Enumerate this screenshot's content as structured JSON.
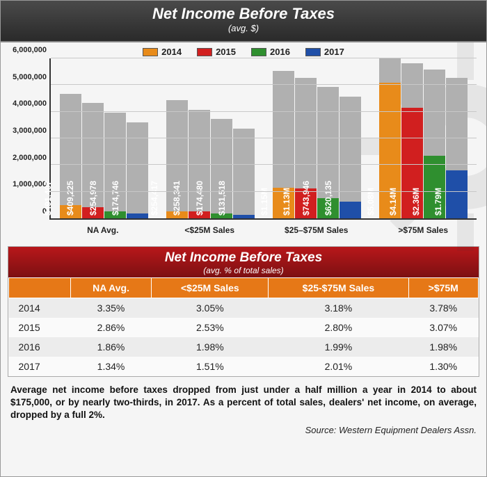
{
  "header": {
    "title": "Net Income Before Taxes",
    "subtitle": "(avg. $)"
  },
  "chart": {
    "type": "bar",
    "ylim": [
      0,
      6000000
    ],
    "ytick_step": 1000000,
    "yticks": [
      "0",
      "1,000,000",
      "2,000,000",
      "3,000,000",
      "4,000,000",
      "5,000,000",
      "6,000,000"
    ],
    "big_bar_color": "#b0b0b0",
    "grid_color": "#c8c8c8",
    "background_color": "#f5f5f5",
    "label_fontsize": 12,
    "series": [
      {
        "year": "2014",
        "color": "#e88b1a"
      },
      {
        "year": "2015",
        "color": "#d11f1f"
      },
      {
        "year": "2016",
        "color": "#2f8f2f"
      },
      {
        "year": "2017",
        "color": "#1f4fa8"
      }
    ],
    "categories": [
      {
        "label": "NA Avg.",
        "big_heights": [
          0.78,
          0.72,
          0.66,
          0.6
        ],
        "values": [
          491407,
          409225,
          254978,
          174746
        ],
        "value_labels": [
          "$491,407",
          "$409,225",
          "$254,978",
          "$174,746"
        ]
      },
      {
        "label": "<$25M Sales",
        "big_heights": [
          0.74,
          0.68,
          0.62,
          0.56
        ],
        "values": [
          254417,
          258341,
          174480,
          131518
        ],
        "value_labels": [
          "$254,417",
          "$258,341",
          "$174,480",
          "$131,518"
        ]
      },
      {
        "label": "$25–$75M Sales",
        "big_heights": [
          0.92,
          0.88,
          0.82,
          0.76
        ],
        "values": [
          1150000,
          1130000,
          743946,
          620135
        ],
        "value_labels": [
          "$1.15M",
          "$1.13M",
          "$743,946",
          "$620,135"
        ]
      },
      {
        "label": ">$75M Sales",
        "big_heights": [
          1.0,
          0.97,
          0.93,
          0.88
        ],
        "values": [
          5080000,
          4140000,
          2360000,
          1790000
        ],
        "value_labels": [
          "$5.08M",
          "$4.14M",
          "$2.36M",
          "$1.79M"
        ]
      }
    ]
  },
  "table": {
    "title": "Net Income Before Taxes",
    "subtitle": "(avg. % of total sales)",
    "header_bg": "#e67817",
    "title_bg_top": "#b8171a",
    "title_bg_bottom": "#7c1012",
    "columns": [
      "",
      "NA Avg.",
      "<$25M Sales",
      "$25-$75M Sales",
      ">$75M"
    ],
    "rows": [
      [
        "2014",
        "3.35%",
        "3.05%",
        "3.18%",
        "3.78%"
      ],
      [
        "2015",
        "2.86%",
        "2.53%",
        "2.80%",
        "3.07%"
      ],
      [
        "2016",
        "1.86%",
        "1.98%",
        "1.99%",
        "1.98%"
      ],
      [
        "2017",
        "1.34%",
        "1.51%",
        "2.01%",
        "1.30%"
      ]
    ]
  },
  "caption": "Average net income before taxes dropped from just under a half million a year in 2014 to about $175,000, or by nearly two-thirds, in 2017. As a percent of total sales, dealers' net income, on average, dropped by a full 2%.",
  "source": "Source: Western Equipment Dealers Assn."
}
